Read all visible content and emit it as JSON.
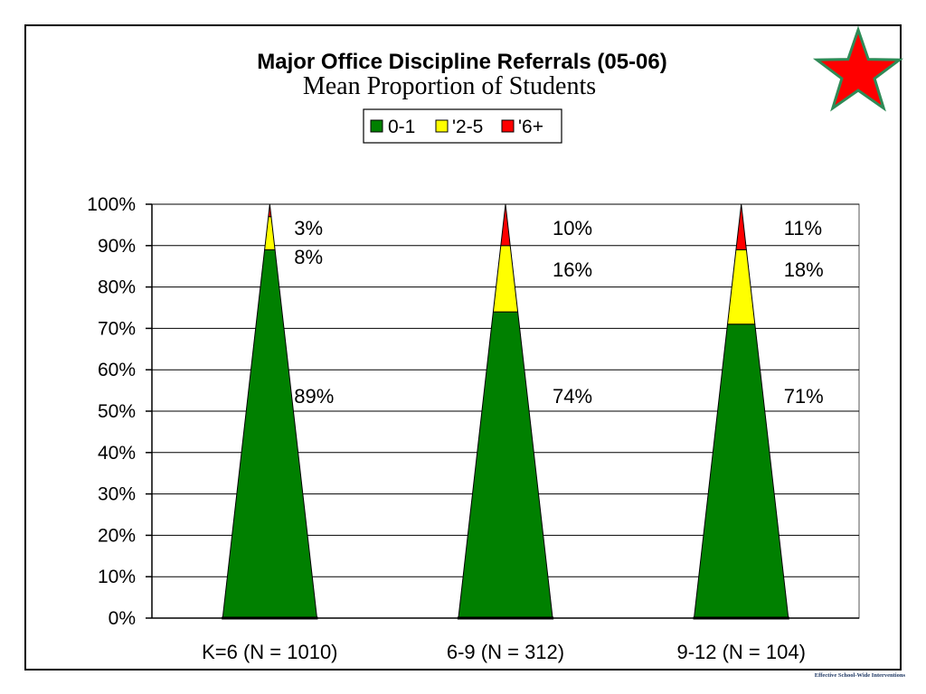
{
  "chart_data": {
    "type": "bar",
    "stacked": "percent",
    "mark_shape": "cone",
    "title": "Major Office Discipline Referrals (05-06)",
    "subtitle": "Mean Proportion of Students",
    "categories": [
      "K=6 (N = 1010)",
      "6-9 (N = 312)",
      "9-12 (N = 104)"
    ],
    "series": [
      {
        "name": "0-1",
        "color": "#008000",
        "values": [
          89,
          74,
          71
        ]
      },
      {
        "name": "'2-5",
        "color": "#FFFF00",
        "values": [
          8,
          16,
          18
        ]
      },
      {
        "name": "'6+",
        "color": "#FF0000",
        "values": [
          3,
          10,
          11
        ]
      }
    ],
    "value_suffix": "%",
    "y_ticks": [
      "0%",
      "10%",
      "20%",
      "30%",
      "40%",
      "50%",
      "60%",
      "70%",
      "80%",
      "90%",
      "100%"
    ],
    "ylim": [
      0,
      100
    ],
    "xlabel": "",
    "ylabel": "",
    "grid": true,
    "legend": "top"
  },
  "decoration": {
    "icon": "star-icon",
    "fill": "#FF0000",
    "stroke": "#2E8B57"
  },
  "footer": {
    "text": "Effective School-Wide Interventions",
    "color": "#1F3864"
  }
}
